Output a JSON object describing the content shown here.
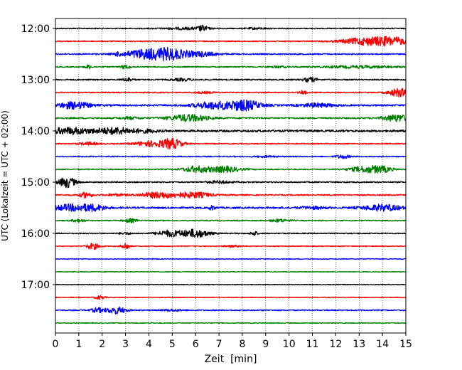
{
  "chart_data": {
    "type": "line",
    "title": "",
    "xlabel": "Zeit  [min]",
    "ylabel": "UTC (Lokalzeit = UTC + 02:00)",
    "xlim": [
      0,
      15
    ],
    "x_ticks": [
      "0",
      "1",
      "2",
      "3",
      "4",
      "5",
      "6",
      "7",
      "8",
      "9",
      "10",
      "11",
      "12",
      "13",
      "14",
      "15"
    ],
    "y_ticks": [
      "12:00",
      "13:00",
      "14:00",
      "15:00",
      "16:00",
      "17:00"
    ],
    "grid": "vertical dotted lines at each minute",
    "trace_interval_min": 15,
    "trace_colors": [
      "#000000",
      "#ff0000",
      "#0000ff",
      "#008000"
    ],
    "series": [
      {
        "start": "12:00",
        "color": "#000000",
        "noise": 0.3,
        "bursts": [
          [
            5.6,
            0.7,
            0.5
          ],
          [
            6.3,
            0.15,
            1.3
          ],
          [
            8.6,
            0.3,
            0.4
          ]
        ]
      },
      {
        "start": "12:15",
        "color": "#ff0000",
        "noise": 0.3,
        "bursts": [
          [
            13.4,
            0.8,
            2.0
          ],
          [
            14.5,
            0.5,
            1.5
          ]
        ]
      },
      {
        "start": "12:30",
        "color": "#0000ff",
        "noise": 0.35,
        "bursts": [
          [
            3.8,
            0.6,
            2.4
          ],
          [
            4.9,
            0.5,
            2.8
          ],
          [
            6.2,
            0.5,
            1.2
          ],
          [
            2.7,
            0.2,
            0.6
          ]
        ]
      },
      {
        "start": "12:45",
        "color": "#008000",
        "noise": 0.3,
        "bursts": [
          [
            1.4,
            0.1,
            1.0
          ],
          [
            3.0,
            0.15,
            0.9
          ],
          [
            13.0,
            1.2,
            0.6
          ],
          [
            9.5,
            0.3,
            0.4
          ]
        ]
      },
      {
        "start": "13:00",
        "color": "#000000",
        "noise": 0.35,
        "bursts": [
          [
            3.1,
            0.15,
            1.0
          ],
          [
            10.9,
            0.2,
            1.2
          ],
          [
            5.4,
            0.3,
            0.6
          ]
        ]
      },
      {
        "start": "13:15",
        "color": "#ff0000",
        "noise": 0.3,
        "bursts": [
          [
            10.6,
            0.1,
            1.0
          ],
          [
            14.7,
            0.3,
            2.2
          ],
          [
            6.4,
            0.3,
            0.4
          ]
        ]
      },
      {
        "start": "13:30",
        "color": "#0000ff",
        "noise": 0.45,
        "bursts": [
          [
            0.8,
            0.5,
            1.8
          ],
          [
            6.8,
            0.6,
            1.8
          ],
          [
            8.1,
            0.5,
            2.6
          ],
          [
            11.2,
            0.5,
            1.0
          ]
        ]
      },
      {
        "start": "13:45",
        "color": "#008000",
        "noise": 0.4,
        "bursts": [
          [
            5.7,
            0.6,
            1.8
          ],
          [
            14.6,
            0.4,
            1.8
          ],
          [
            3.2,
            0.3,
            0.6
          ]
        ]
      },
      {
        "start": "14:00",
        "color": "#000000",
        "noise": 0.55,
        "bursts": [
          [
            0.6,
            0.6,
            1.6
          ],
          [
            2.6,
            0.7,
            1.6
          ],
          [
            4.0,
            0.3,
            0.5
          ]
        ]
      },
      {
        "start": "14:15",
        "color": "#ff0000",
        "noise": 0.3,
        "bursts": [
          [
            1.4,
            0.3,
            0.8
          ],
          [
            4.1,
            0.5,
            1.4
          ],
          [
            5.0,
            0.3,
            2.6
          ]
        ]
      },
      {
        "start": "14:30",
        "color": "#0000ff",
        "noise": 0.3,
        "bursts": [
          [
            12.3,
            0.2,
            1.0
          ],
          [
            9.0,
            0.3,
            0.4
          ]
        ]
      },
      {
        "start": "14:45",
        "color": "#008000",
        "noise": 0.3,
        "bursts": [
          [
            6.0,
            0.4,
            1.6
          ],
          [
            7.2,
            0.5,
            1.6
          ],
          [
            13.3,
            0.5,
            1.6
          ],
          [
            14.0,
            0.3,
            1.2
          ]
        ]
      },
      {
        "start": "15:00",
        "color": "#000000",
        "noise": 0.35,
        "bursts": [
          [
            0.5,
            0.25,
            2.8
          ],
          [
            7.0,
            0.4,
            0.6
          ]
        ]
      },
      {
        "start": "15:15",
        "color": "#ff0000",
        "noise": 0.35,
        "bursts": [
          [
            1.3,
            0.2,
            1.4
          ],
          [
            4.5,
            0.6,
            1.6
          ],
          [
            6.0,
            0.5,
            1.4
          ],
          [
            2.6,
            0.3,
            0.5
          ]
        ]
      },
      {
        "start": "15:30",
        "color": "#0000ff",
        "noise": 0.45,
        "bursts": [
          [
            0.6,
            0.5,
            1.6
          ],
          [
            1.6,
            0.4,
            1.6
          ],
          [
            6.7,
            0.1,
            1.0
          ],
          [
            14.0,
            0.6,
            1.6
          ],
          [
            11.0,
            0.4,
            0.6
          ]
        ]
      },
      {
        "start": "15:45",
        "color": "#008000",
        "noise": 0.3,
        "bursts": [
          [
            1.0,
            0.2,
            0.8
          ],
          [
            3.2,
            0.2,
            1.0
          ],
          [
            9.6,
            0.3,
            0.7
          ]
        ]
      },
      {
        "start": "16:00",
        "color": "#000000",
        "noise": 0.3,
        "bursts": [
          [
            4.9,
            0.4,
            1.6
          ],
          [
            6.0,
            0.4,
            2.2
          ],
          [
            8.5,
            0.1,
            1.2
          ],
          [
            3.0,
            0.2,
            0.5
          ]
        ]
      },
      {
        "start": "16:15",
        "color": "#ff0000",
        "noise": 0.25,
        "bursts": [
          [
            1.6,
            0.2,
            1.6
          ],
          [
            3.0,
            0.12,
            2.0
          ],
          [
            7.6,
            0.3,
            0.4
          ]
        ]
      },
      {
        "start": "16:30",
        "color": "#0000ff",
        "noise": 0.2,
        "bursts": []
      },
      {
        "start": "16:45",
        "color": "#008000",
        "noise": 0.2,
        "bursts": []
      },
      {
        "start": "17:00",
        "color": "#000000",
        "noise": 0.2,
        "bursts": []
      },
      {
        "start": "17:15",
        "color": "#ff0000",
        "noise": 0.22,
        "bursts": [
          [
            1.9,
            0.15,
            1.0
          ]
        ]
      },
      {
        "start": "17:30",
        "color": "#0000ff",
        "noise": 0.3,
        "bursts": [
          [
            1.8,
            0.2,
            1.2
          ],
          [
            2.6,
            0.3,
            1.8
          ],
          [
            5.0,
            0.3,
            0.5
          ]
        ]
      },
      {
        "start": "17:45",
        "color": "#008000",
        "noise": 0.22,
        "bursts": []
      }
    ]
  }
}
